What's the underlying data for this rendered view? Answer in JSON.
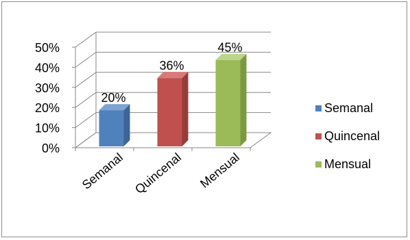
{
  "chart_data": {
    "type": "bar",
    "title": "",
    "xlabel": "",
    "ylabel": "",
    "categories": [
      "Semanal",
      "Quincenal",
      "Mensual"
    ],
    "values": [
      20,
      36,
      45
    ],
    "value_labels": [
      "20%",
      "36%",
      "45%"
    ],
    "ylim": [
      0,
      50
    ],
    "yticks": [
      "0%",
      "10%",
      "20%",
      "30%",
      "40%",
      "50%"
    ],
    "grid": true,
    "three_d": true,
    "legend_position": "right",
    "legend": [
      "Semanal",
      "Quincenal",
      "Mensual"
    ],
    "colors": [
      "#4f81bd",
      "#c0504d",
      "#9bbb59"
    ],
    "shadow_colors": [
      "#3a6596",
      "#963c3a",
      "#7a9a40"
    ],
    "top_colors": [
      "#7da2d4",
      "#d87b78",
      "#bcd58a"
    ]
  }
}
